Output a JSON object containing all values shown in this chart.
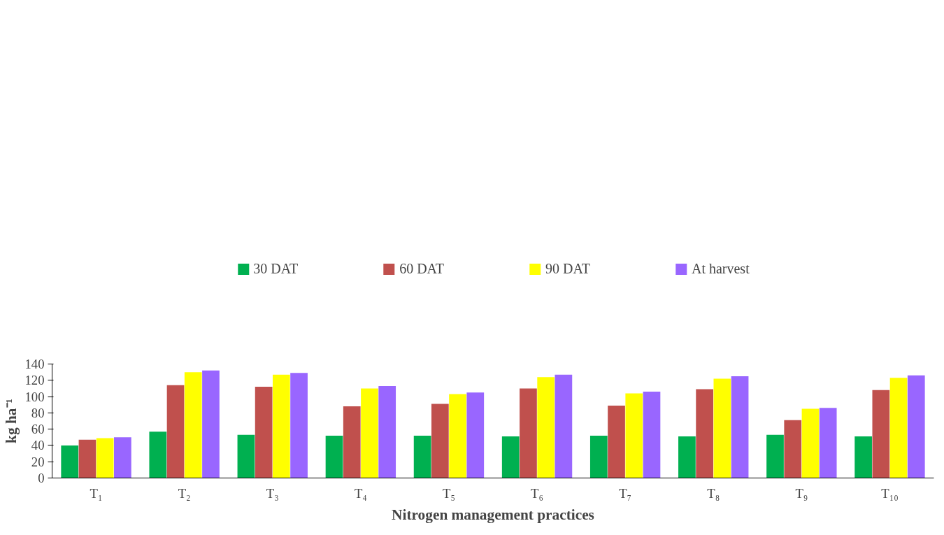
{
  "chart_data": {
    "type": "bar",
    "xlabel": "Nitrogen management practices",
    "ylabel": "kg ha⁻¹",
    "categories": [
      "T₁",
      "T₂",
      "T₃",
      "T₄",
      "T₅",
      "T₆",
      "T₇",
      "T₈",
      "T₉",
      "T₁₀"
    ],
    "series": [
      {
        "name": "30 DAT",
        "color": "#00b050",
        "values": [
          40,
          57,
          53,
          52,
          52,
          51,
          52,
          51,
          53,
          51
        ]
      },
      {
        "name": "60 DAT",
        "color": "#c0504d",
        "values": [
          47,
          114,
          112,
          88,
          91,
          110,
          89,
          109,
          71,
          108
        ]
      },
      {
        "name": "90 DAT",
        "color": "#ffff00",
        "values": [
          49,
          130,
          127,
          110,
          103,
          124,
          104,
          122,
          85,
          123
        ]
      },
      {
        "name": "At harvest",
        "color": "#9966ff",
        "values": [
          50,
          132,
          129,
          113,
          105,
          127,
          106,
          125,
          86,
          126
        ]
      }
    ],
    "ylim": [
      0,
      140
    ],
    "yticks": [
      0,
      20,
      40,
      60,
      80,
      100,
      120,
      140
    ],
    "grid": false,
    "legend": "top"
  }
}
